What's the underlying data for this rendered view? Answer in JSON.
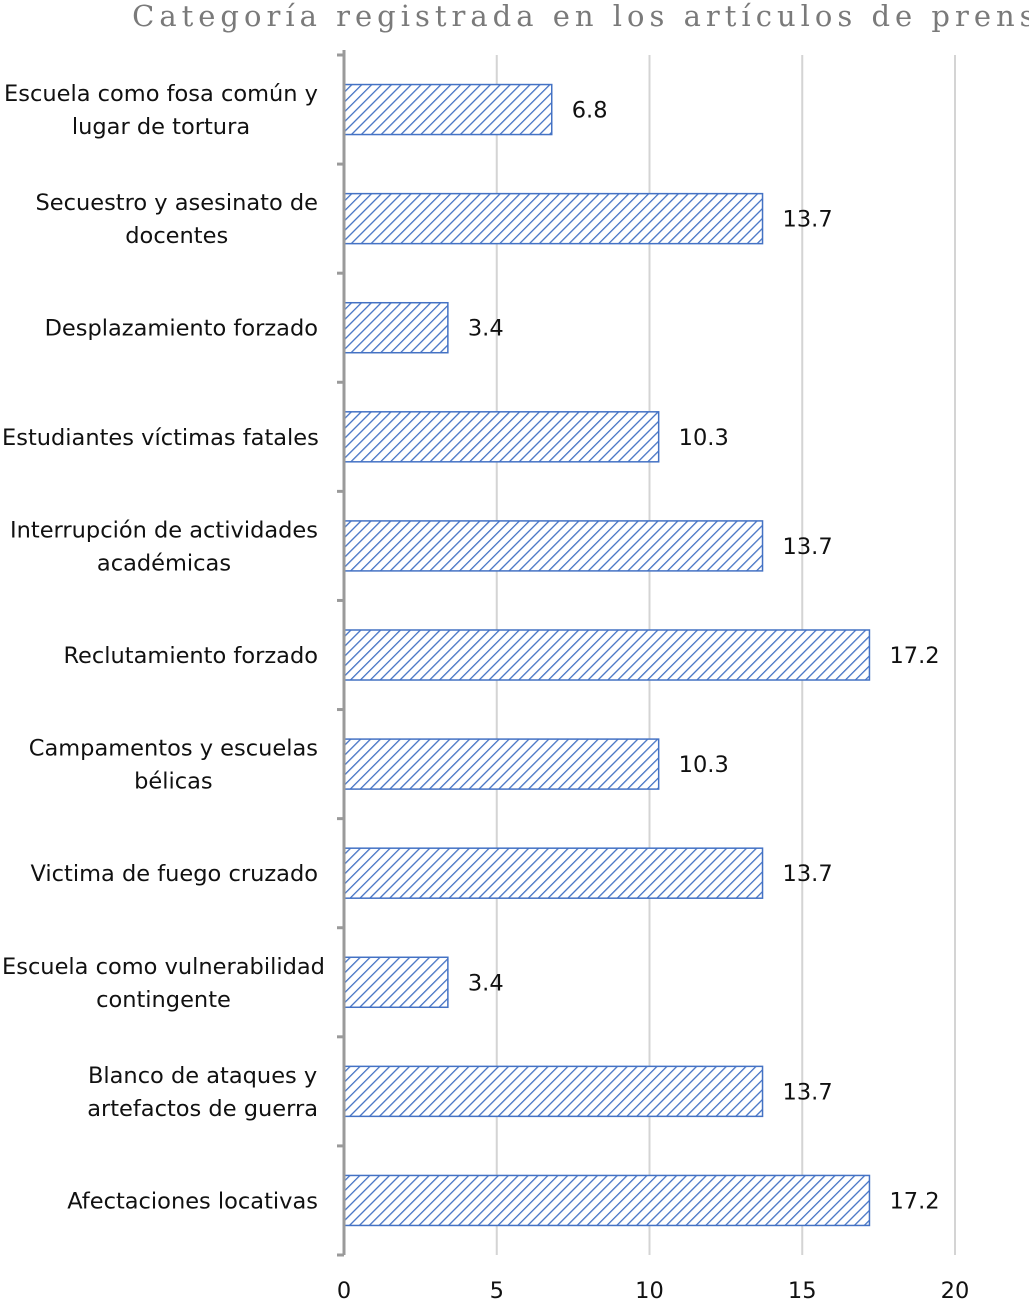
{
  "chart_data": {
    "type": "bar",
    "orientation": "horizontal",
    "title": "Categoría registrada en los artículos de prensa",
    "categories": [
      "Escuela como fosa común y\nlugar de tortura",
      "Secuestro y asesinato de\ndocentes",
      "Desplazamiento forzado",
      "Estudiantes víctimas fatales",
      "Interrupción de actividades\nacadémicas",
      "Reclutamiento forzado",
      "Campamentos y escuelas\nbélicas",
      "Victima de fuego cruzado",
      "Escuela como vulnerabilidad\ncontingente",
      "Blanco de ataques y\nartefactos de guerra",
      "Afectaciones locativas"
    ],
    "values": [
      6.8,
      13.7,
      3.4,
      10.3,
      13.7,
      17.2,
      10.3,
      13.7,
      3.4,
      13.7,
      17.2
    ],
    "value_labels": [
      "6.8",
      "13.7",
      "3.4",
      "10.3",
      "13.7",
      "17.2",
      "10.3",
      "13.7",
      "3.4",
      "13.7",
      "17.2"
    ],
    "xlim": [
      0,
      20
    ],
    "x_ticks": [
      0,
      5,
      10,
      15,
      20
    ],
    "grid": "vertical",
    "legend": "none",
    "bar_fill": "diagonal-hatch",
    "colors": {
      "bar_stroke": "#4472c4",
      "hatch": "#4472c4",
      "grid": "#d4d4d4",
      "axis": "#9a9a9a",
      "title": "#7a7a7a"
    }
  }
}
